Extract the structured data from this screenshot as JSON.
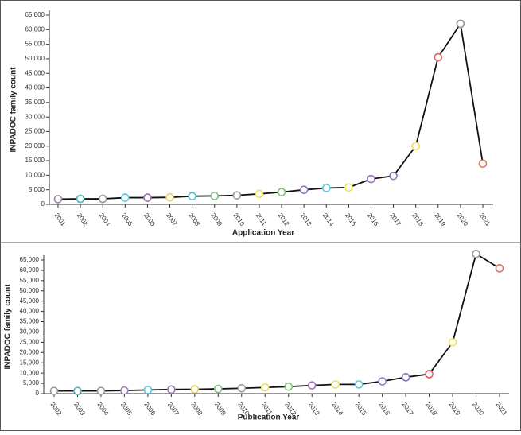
{
  "chart_data": [
    {
      "type": "line",
      "ylabel": "INPADOC family count",
      "xlabel": "Application Year",
      "categories": [
        "2001",
        "2002",
        "2004",
        "2005",
        "2006",
        "2007",
        "2008",
        "2009",
        "2010",
        "2011",
        "2012",
        "2013",
        "2014",
        "2015",
        "2016",
        "2017",
        "2018",
        "2019",
        "2020",
        "2021"
      ],
      "series": [
        {
          "color": "#111111",
          "values": [
            1800,
            1900,
            1900,
            2300,
            2300,
            2400,
            2800,
            2900,
            3100,
            3600,
            4200,
            5000,
            5600,
            5800,
            8700,
            9800,
            20000,
            50500,
            62000,
            14000
          ],
          "marker_colors": [
            "#9a8aa8",
            "#4fb3b8",
            "#999999",
            "#5bc8e0",
            "#9b6fb0",
            "#e8d060",
            "#4fc0d8",
            "#7fc080",
            "#999999",
            "#f0e050",
            "#7fc070",
            "#9b70b8",
            "#5bc8e0",
            "#f0e060",
            "#a070c0",
            "#8a70b8",
            "#f0e060",
            "#e06060",
            "#8a9a9a",
            "#e07060"
          ]
        }
      ],
      "ylim": [
        0,
        65000
      ],
      "yticks": [
        0,
        {
          "value": 5000,
          "label": "5,000"
        },
        {
          "value": 10000,
          "label": "10,000"
        },
        {
          "value": 15000,
          "label": "15,000"
        },
        {
          "value": 20000,
          "label": "20,000"
        },
        {
          "value": 25000,
          "label": "25,000"
        },
        {
          "value": 30000,
          "label": "30,000"
        },
        {
          "value": 35000,
          "label": "35,000"
        },
        {
          "value": 40000,
          "label": "40,000"
        },
        {
          "value": 45000,
          "label": "45,000"
        },
        {
          "value": 50000,
          "label": "50,000"
        },
        {
          "value": 55000,
          "label": "55,000"
        },
        {
          "value": 60000,
          "label": "60,000"
        },
        {
          "value": 65000,
          "label": "65,000"
        }
      ]
    },
    {
      "type": "line",
      "ylabel": "INPADOC family count",
      "xlabel": "Publication Year",
      "categories": [
        "2002",
        "2003",
        "2004",
        "2005",
        "2006",
        "2007",
        "2008",
        "2009",
        "2010",
        "2011",
        "2012",
        "2013",
        "2014",
        "2015",
        "2016",
        "2017",
        "2018",
        "2019",
        "2020",
        "2021"
      ],
      "series": [
        {
          "color": "#111111",
          "values": [
            1300,
            1300,
            1300,
            1500,
            1800,
            2000,
            2100,
            2300,
            2600,
            3000,
            3400,
            4000,
            4500,
            4500,
            6000,
            8000,
            9500,
            25000,
            68000,
            61000
          ],
          "marker_colors": [
            "#999999",
            "#4fb3b8",
            "#999999",
            "#a080b8",
            "#5bc8e0",
            "#9b70b0",
            "#e8d060",
            "#7fc080",
            "#999999",
            "#f0e050",
            "#7fc070",
            "#9b70b8",
            "#f0e060",
            "#5bc8e0",
            "#a070c0",
            "#8a70b8",
            "#e06060",
            "#f0e060",
            "#999999",
            "#e07060"
          ]
        }
      ],
      "ylim": [
        0,
        65000
      ],
      "yticks": [
        0,
        {
          "value": 5000,
          "label": "5,000"
        },
        {
          "value": 10000,
          "label": "10,000"
        },
        {
          "value": 15000,
          "label": "15,000"
        },
        {
          "value": 20000,
          "label": "20,000"
        },
        {
          "value": 25000,
          "label": "25,000"
        },
        {
          "value": 30000,
          "label": "30,000"
        },
        {
          "value": 35000,
          "label": "35,000"
        },
        {
          "value": 40000,
          "label": "40,000"
        },
        {
          "value": 45000,
          "label": "45,000"
        },
        {
          "value": 50000,
          "label": "50,000"
        },
        {
          "value": 55000,
          "label": "55,000"
        },
        {
          "value": 60000,
          "label": "60,000"
        },
        {
          "value": 65000,
          "label": "65,000"
        }
      ]
    }
  ]
}
